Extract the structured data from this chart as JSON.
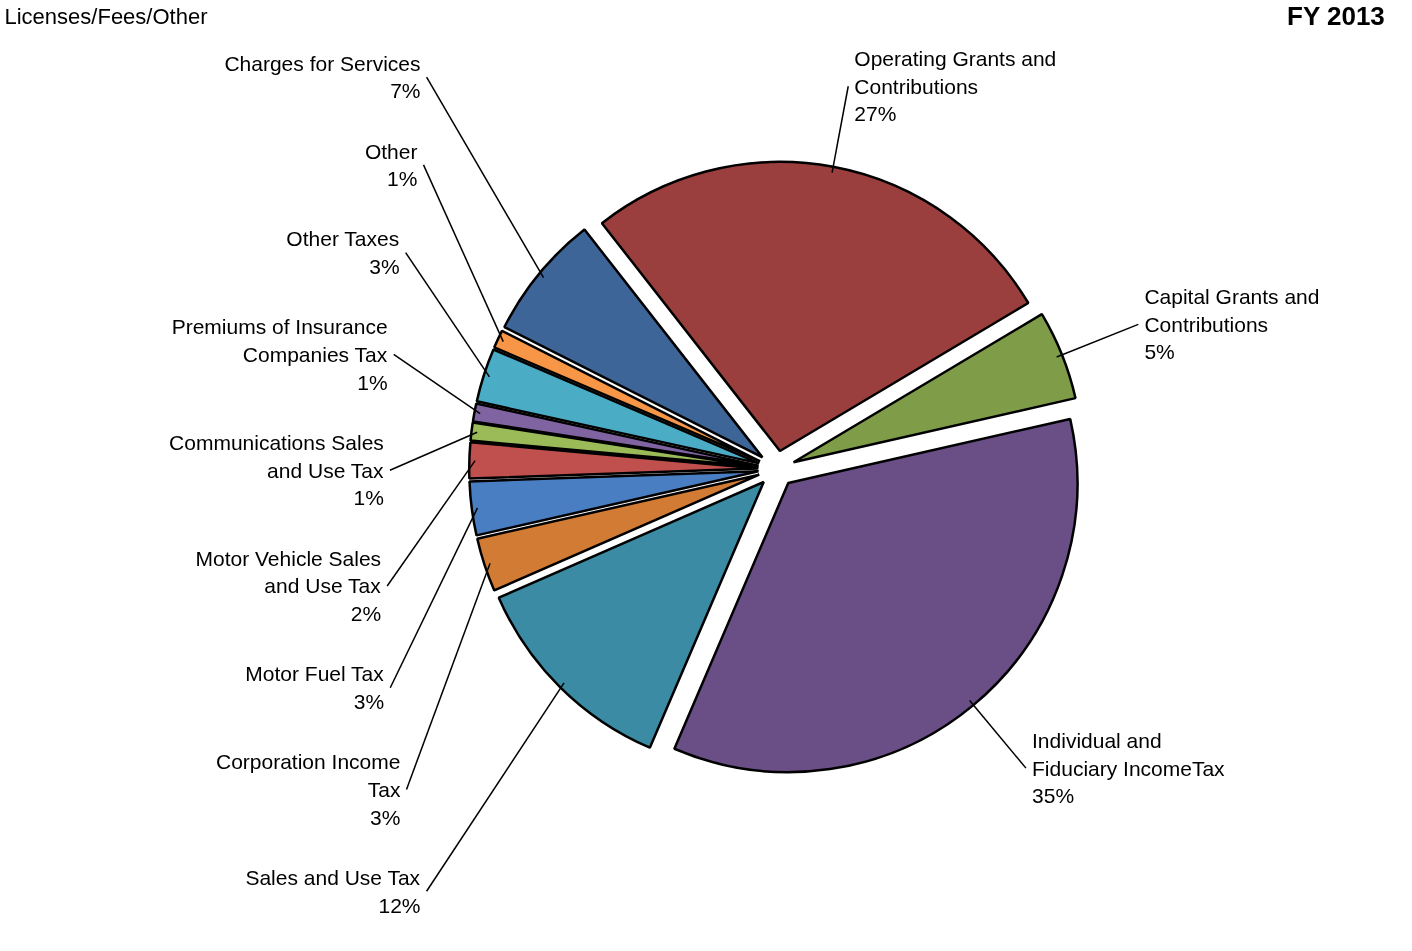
{
  "chart_data": {
    "type": "pie",
    "title": "FY 2013",
    "annotations": [
      "Licenses/Fees/Other"
    ],
    "categories": [
      "Operating Grants and Contributions",
      "Capital Grants and Contributions",
      "Individual and Fiduciary IncomeTax",
      "Sales and Use Tax",
      "Corporation Income Tax",
      "Motor Fuel Tax",
      "Motor Vehicle Sales and Use Tax",
      "Communications Sales and Use Tax",
      "Premiums of Insurance Companies Tax",
      "Other Taxes",
      "Other",
      "Charges for Services"
    ],
    "values": [
      27,
      5,
      35,
      12,
      3,
      3,
      2,
      1,
      1,
      3,
      1,
      7
    ],
    "value_labels": [
      "27%",
      "5%",
      "35%",
      "12%",
      "3%",
      "3%",
      "2%",
      "1%",
      "1%",
      "3%",
      "1%",
      "7%"
    ],
    "colors": [
      "#9b3f3e",
      "#7f9c49",
      "#6a4e86",
      "#3a8ba3",
      "#d27b35",
      "#4a7ec2",
      "#c0504d",
      "#9bbb59",
      "#8064a2",
      "#4bacc6",
      "#f79646",
      "#3e6597"
    ]
  }
}
